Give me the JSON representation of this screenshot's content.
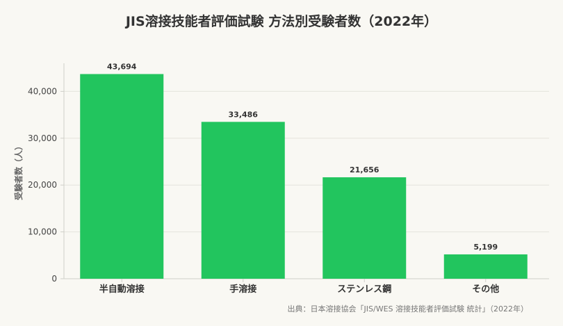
{
  "chart_data": {
    "type": "bar",
    "title": "JIS溶接技能者評価試験 方法別受験者数（2022年）",
    "ylabel": "受験者数（人）",
    "xlabel": "",
    "categories": [
      "半自動溶接",
      "手溶接",
      "ステンレス鋼",
      "その他"
    ],
    "values": [
      43694,
      33486,
      21656,
      5199
    ],
    "value_labels": [
      "43,694",
      "33,486",
      "21,656",
      "5,199"
    ],
    "ylim": [
      0,
      46000
    ],
    "yticks": [
      0,
      10000,
      20000,
      30000,
      40000
    ],
    "ytick_labels": [
      "0",
      "10,000",
      "20,000",
      "30,000",
      "40,000"
    ],
    "grid": true,
    "legend": "none",
    "colors": {
      "bar": "#22c55e",
      "grid": "#e4e3dc",
      "axis": "#cfcfc8",
      "text": "#333333"
    }
  },
  "source": "出典：日本溶接協会「JIS/WES 溶接技能者評価試験 統計」（2022年）"
}
